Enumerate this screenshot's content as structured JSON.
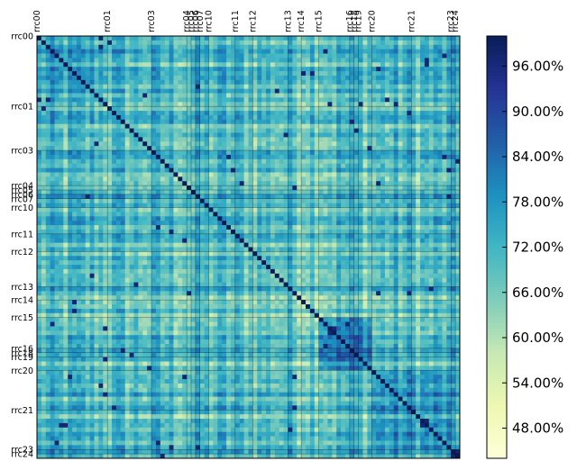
{
  "chart_data": {
    "type": "heatmap",
    "title": "",
    "xlabel": "",
    "ylabel": "",
    "labels": [
      "rrc00",
      "rrc01",
      "rrc03",
      "rrc04",
      "rrc05",
      "rrc06",
      "rrc07",
      "rrc10",
      "rrc11",
      "rrc12",
      "rrc13",
      "rrc14",
      "rrc15",
      "rrc16",
      "rrc18",
      "rrc19",
      "rrc20",
      "rrc21",
      "rrc23",
      "rrc24"
    ],
    "label_start_index": [
      0,
      16,
      26,
      34,
      35,
      36,
      37,
      39,
      45,
      49,
      57,
      60,
      64,
      71,
      72,
      73,
      76,
      85,
      94,
      95
    ],
    "size": 96,
    "diagonal_value": 100,
    "value_range": [
      44,
      100
    ],
    "colormap": "YlGnBu",
    "colorbar": {
      "ticks": [
        48,
        54,
        60,
        66,
        72,
        78,
        84,
        90,
        96
      ],
      "tick_labels": [
        "48.00%",
        "54.00%",
        "60.00%",
        "66.00%",
        "72.00%",
        "78.00%",
        "84.00%",
        "90.00%",
        "96.00%"
      ],
      "range": [
        44,
        100
      ]
    },
    "cluster_bands": [
      {
        "from": 64,
        "to": 76,
        "typical_value": 82
      },
      {
        "from": 76,
        "to": 94,
        "typical_value": 76
      },
      {
        "from": 0,
        "to": 16,
        "typical_value": 72
      }
    ],
    "grid": false
  }
}
